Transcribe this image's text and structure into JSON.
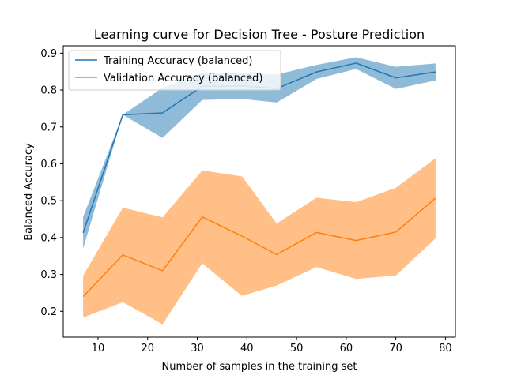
{
  "chart_data": {
    "type": "line",
    "title": "Learning curve for Decision Tree - Posture Prediction",
    "xlabel": "Number of samples in the training set",
    "ylabel": "Balanced Accuracy",
    "xlim": [
      3,
      82
    ],
    "ylim": [
      0.13,
      0.92
    ],
    "xticks": [
      10,
      20,
      30,
      40,
      50,
      60,
      70,
      80
    ],
    "yticks": [
      0.2,
      0.3,
      0.4,
      0.5,
      0.6,
      0.7,
      0.8,
      0.9
    ],
    "grid": false,
    "legend_position": "upper-left",
    "x": [
      7,
      15,
      23,
      31,
      39,
      46,
      54,
      62,
      70,
      78
    ],
    "series": [
      {
        "name": "Training Accuracy (balanced)",
        "color": "#1f77b4",
        "band_color": "#1f77b4",
        "values": [
          0.413,
          0.733,
          0.738,
          0.81,
          0.811,
          0.804,
          0.849,
          0.873,
          0.833,
          0.849
        ],
        "lower": [
          0.37,
          0.733,
          0.67,
          0.773,
          0.776,
          0.766,
          0.83,
          0.857,
          0.803,
          0.826
        ],
        "upper": [
          0.456,
          0.733,
          0.806,
          0.847,
          0.846,
          0.842,
          0.868,
          0.889,
          0.863,
          0.872
        ]
      },
      {
        "name": "Validation Accuracy (balanced)",
        "color": "#ff7f0e",
        "band_color": "#ff7f0e",
        "values": [
          0.24,
          0.353,
          0.31,
          0.456,
          0.404,
          0.354,
          0.414,
          0.392,
          0.415,
          0.507
        ],
        "lower": [
          0.183,
          0.225,
          0.165,
          0.33,
          0.242,
          0.27,
          0.32,
          0.288,
          0.297,
          0.398
        ],
        "upper": [
          0.297,
          0.481,
          0.455,
          0.582,
          0.566,
          0.438,
          0.508,
          0.496,
          0.535,
          0.615
        ]
      }
    ]
  }
}
